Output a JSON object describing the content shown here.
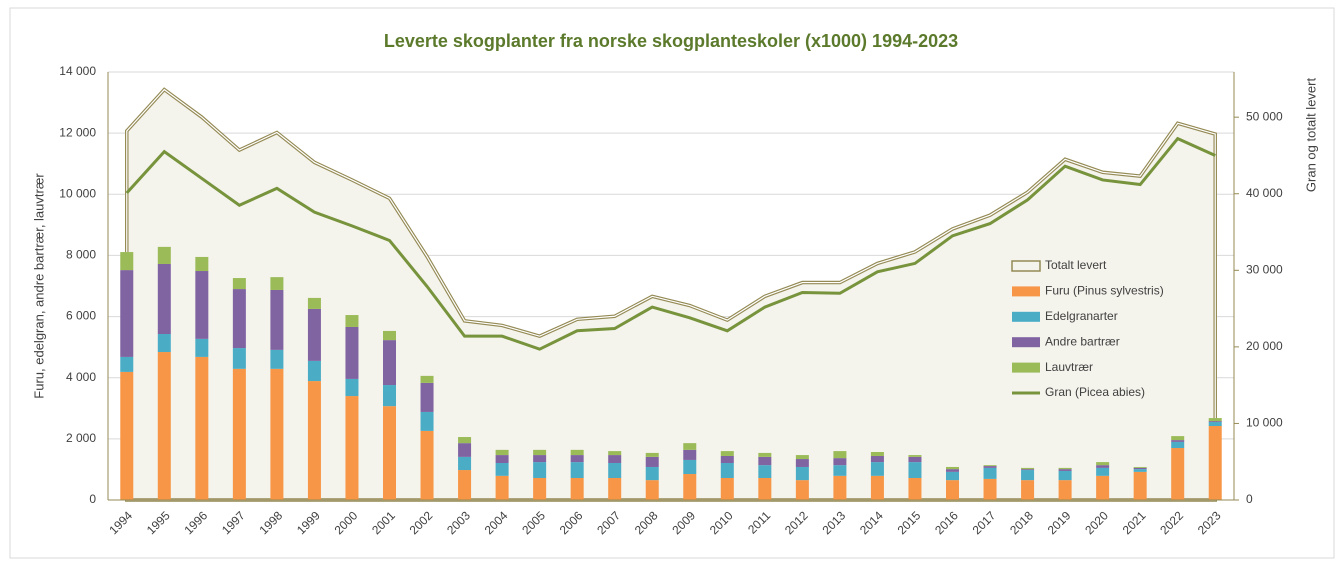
{
  "chart_data": {
    "type": "bar",
    "stacked": true,
    "title": "Leverte skogplanter fra norske skogplanteskoler (x1000) 1994-2023",
    "y_label": "Furu, edelgran, andre bartrær, lauvtrær",
    "y2_label": "Gran og totalt levert",
    "categories": [
      "1994",
      "1995",
      "1996",
      "1997",
      "1998",
      "1999",
      "2000",
      "2001",
      "2002",
      "2003",
      "2004",
      "2005",
      "2006",
      "2007",
      "2008",
      "2009",
      "2010",
      "2011",
      "2012",
      "2013",
      "2014",
      "2015",
      "2016",
      "2017",
      "2018",
      "2019",
      "2020",
      "2021",
      "2022",
      "2023"
    ],
    "ylim": [
      0,
      14000
    ],
    "yticks": [
      0,
      {
        "value": 2000,
        "label": "2 000"
      },
      {
        "value": 4000,
        "label": "4 000"
      },
      {
        "value": 6000,
        "label": "6 000"
      },
      {
        "value": 8000,
        "label": "8 000"
      },
      {
        "value": 10000,
        "label": "10 000"
      },
      {
        "value": 12000,
        "label": "12 000"
      },
      {
        "value": 14000,
        "label": "14 000"
      }
    ],
    "y2lim": [
      0,
      55900
    ],
    "y2ticks": [
      0,
      {
        "value": 10000,
        "label": "10 000"
      },
      {
        "value": 20000,
        "label": "20 000"
      },
      {
        "value": 30000,
        "label": "30 000"
      },
      {
        "value": 40000,
        "label": "40 000"
      },
      {
        "value": 50000,
        "label": "50 000"
      }
    ],
    "grid": true,
    "legend": "right",
    "series": [
      {
        "name": "Totalt levert",
        "type": "area",
        "axis": "y2",
        "color": "#948a54",
        "values": [
          48200,
          53600,
          50000,
          45700,
          48000,
          44100,
          41800,
          39400,
          31800,
          23400,
          22800,
          21400,
          23600,
          24000,
          26600,
          25400,
          23500,
          26600,
          28400,
          28400,
          30900,
          32400,
          35400,
          37200,
          40200,
          44500,
          42800,
          42300,
          49200,
          47800
        ]
      },
      {
        "name": "Furu (Pinus sylvestris)",
        "type": "bar",
        "color": "#f79646",
        "values": [
          4190,
          4840,
          4680,
          4290,
          4290,
          3890,
          3400,
          3070,
          2260,
          980,
          790,
          720,
          720,
          720,
          650,
          850,
          720,
          720,
          650,
          790,
          790,
          720,
          650,
          690,
          650,
          650,
          790,
          920,
          1700,
          2420
        ]
      },
      {
        "name": "Edelgranarter",
        "type": "bar",
        "color": "#4bacc6",
        "values": [
          490,
          590,
          590,
          680,
          620,
          660,
          560,
          690,
          620,
          430,
          420,
          520,
          520,
          490,
          430,
          460,
          490,
          420,
          430,
          350,
          450,
          520,
          270,
          360,
          330,
          300,
          260,
          90,
          200,
          130
        ]
      },
      {
        "name": "Andre bartrær",
        "type": "bar",
        "color": "#8064a2",
        "values": [
          2840,
          2290,
          2220,
          1930,
          1960,
          1700,
          1700,
          1470,
          950,
          450,
          260,
          230,
          230,
          260,
          330,
          330,
          230,
          270,
          260,
          230,
          200,
          170,
          90,
          60,
          30,
          60,
          90,
          40,
          60,
          30
        ]
      },
      {
        "name": "Lauvtrær",
        "type": "bar",
        "color": "#9bbb59",
        "values": [
          590,
          560,
          460,
          360,
          420,
          360,
          390,
          300,
          230,
          200,
          170,
          170,
          170,
          130,
          130,
          220,
          160,
          130,
          130,
          230,
          130,
          60,
          70,
          30,
          40,
          40,
          100,
          30,
          130,
          100
        ]
      },
      {
        "name": "Gran (Picea abies)",
        "type": "line",
        "axis": "y2",
        "color": "#77933c",
        "values": [
          40100,
          45500,
          42000,
          38500,
          40700,
          37600,
          35800,
          33900,
          27900,
          21400,
          21400,
          19700,
          22100,
          22400,
          25200,
          23800,
          22100,
          25200,
          27100,
          27000,
          29800,
          30900,
          34500,
          36100,
          39200,
          43600,
          41800,
          41200,
          47200,
          45000
        ]
      }
    ]
  }
}
